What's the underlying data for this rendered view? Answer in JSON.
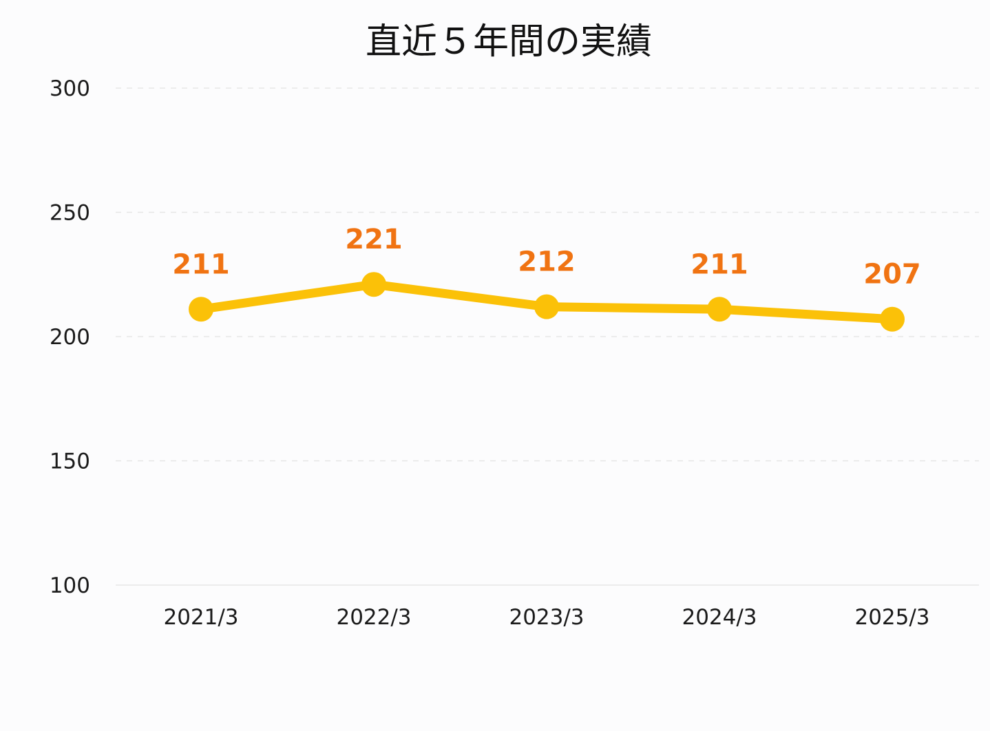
{
  "chart_data": {
    "type": "line",
    "title": "直近５年間の実績",
    "categories": [
      "2021/3",
      "2022/3",
      "2023/3",
      "2024/3",
      "2025/3"
    ],
    "series": [
      {
        "values": [
          211,
          221,
          212,
          211,
          207
        ]
      }
    ],
    "data_labels": [
      "211",
      "221",
      "212",
      "211",
      "207"
    ],
    "ylim": [
      100,
      300
    ],
    "yticks": [
      300,
      250,
      200,
      150,
      100
    ],
    "ytick_labels": [
      "300",
      "250",
      "200",
      "150",
      "100"
    ],
    "grid": true,
    "legend": "none",
    "colors": {
      "line": "#fbc108",
      "marker": "#fbc108",
      "data_label": "#f07312",
      "grid": "#e6e6e6"
    }
  }
}
